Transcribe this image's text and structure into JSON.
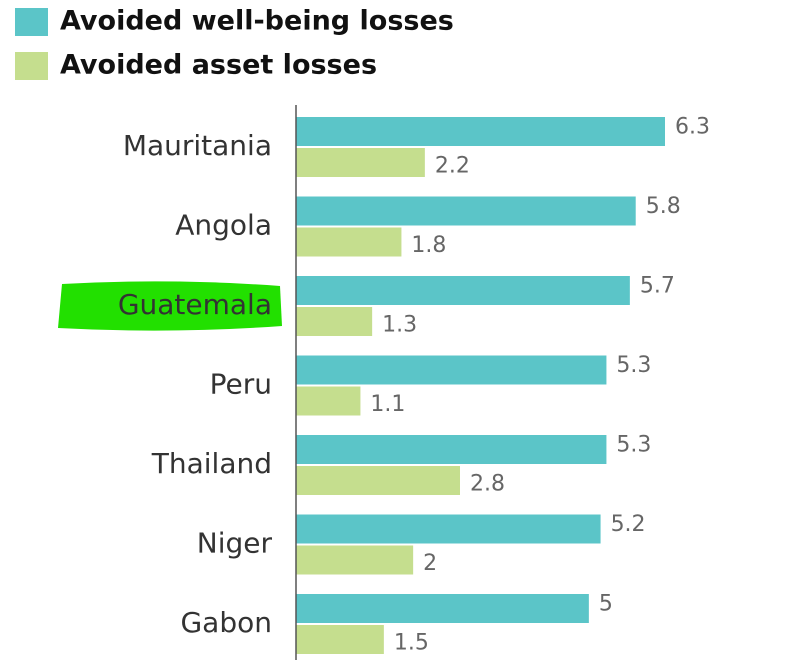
{
  "chart_data": {
    "type": "hbar",
    "categories": [
      "Mauritania",
      "Angola",
      "Guatemala",
      "Peru",
      "Thailand",
      "Niger",
      "Gabon"
    ],
    "series": [
      {
        "name": "Avoided well-being losses",
        "color": "#5bc5c8",
        "values": [
          6.3,
          5.8,
          5.7,
          5.3,
          5.3,
          5.2,
          5
        ]
      },
      {
        "name": "Avoided asset losses",
        "color": "#c5de8e",
        "values": [
          2.2,
          1.8,
          1.3,
          1.1,
          2.8,
          2,
          1.5
        ]
      }
    ],
    "highlight_category": "Guatemala",
    "highlight_color": "#22e000"
  }
}
